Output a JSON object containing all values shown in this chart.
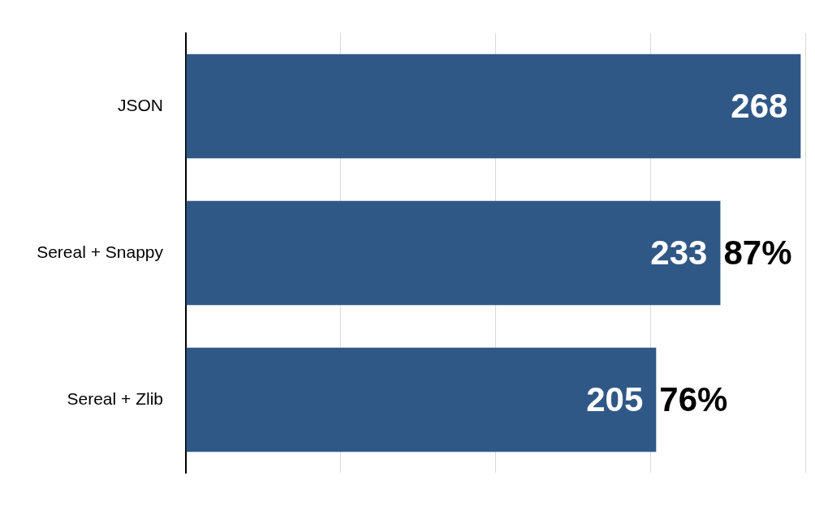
{
  "chart_data": {
    "type": "bar",
    "orientation": "horizontal",
    "categories": [
      "JSON",
      "Sereal + Snappy",
      "Sereal + Zlib"
    ],
    "values": [
      268,
      233,
      205
    ],
    "color": "#305887",
    "xlim": [
      0,
      270
    ],
    "xticks": [
      {
        "value": 0,
        "label": null
      },
      {
        "value": 67.5,
        "label": null
      },
      {
        "value": 135,
        "label": null
      },
      {
        "value": 202.5,
        "label": null
      },
      {
        "value": 270,
        "label": null
      }
    ],
    "grid": "x",
    "tick_labels": "y",
    "data_labels": true,
    "annotations": [
      {
        "text": "87%",
        "x": 233,
        "y": "Sereal + Snappy"
      },
      {
        "text": "76%",
        "x": 205,
        "y": "Sereal + Zlib"
      }
    ]
  }
}
